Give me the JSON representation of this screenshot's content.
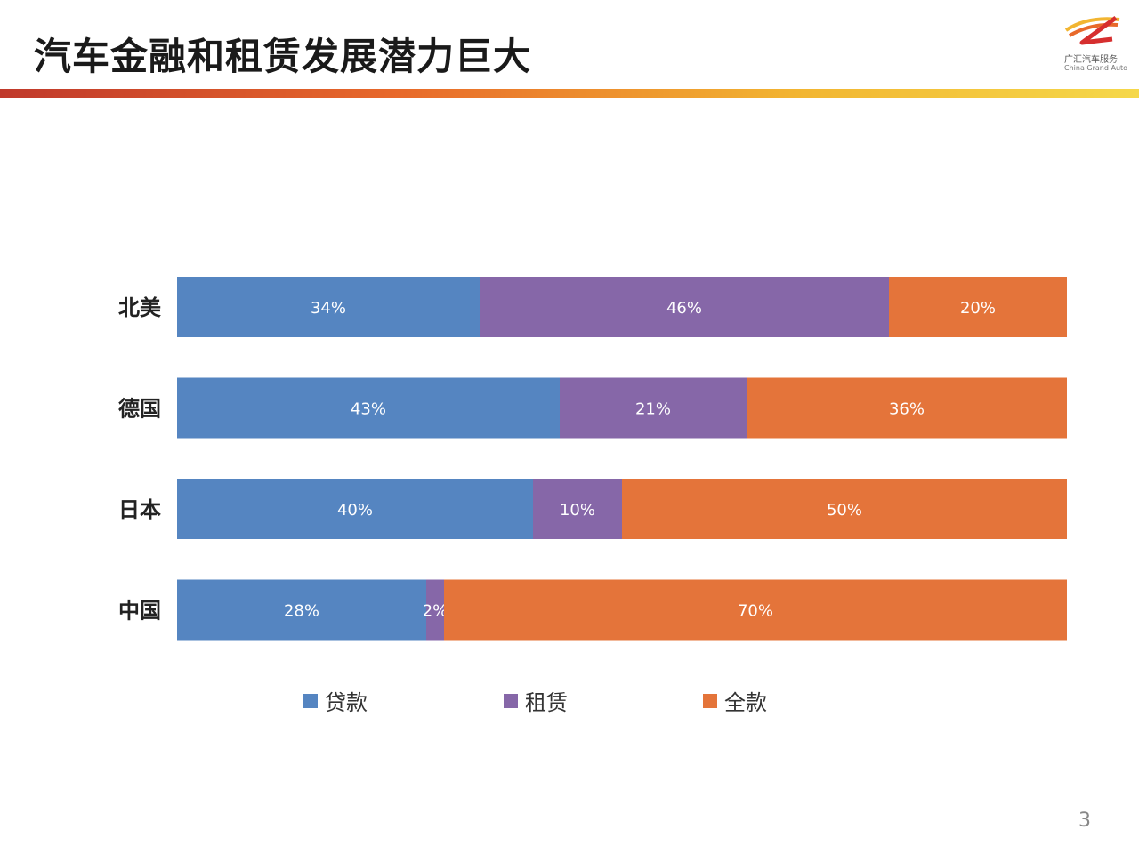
{
  "header": {
    "title": "汽车金融和租赁发展潜力巨大",
    "logo_cn": "广汇汽车服务",
    "logo_en": "China Grand Auto"
  },
  "colors": {
    "loan": "#5585c1",
    "lease": "#8667a8",
    "cash": "#e4743a"
  },
  "chart_data": {
    "type": "bar",
    "orientation": "horizontal",
    "stacked": true,
    "categories": [
      "北美",
      "德国",
      "日本",
      "中国"
    ],
    "series": [
      {
        "name": "贷款",
        "values": [
          34,
          43,
          40,
          28
        ]
      },
      {
        "name": "租赁",
        "values": [
          46,
          21,
          10,
          2
        ]
      },
      {
        "name": "全款",
        "values": [
          20,
          36,
          50,
          70
        ]
      }
    ],
    "value_suffix": "%",
    "xlim": [
      0,
      100
    ],
    "grid": false,
    "legend_position": "bottom"
  },
  "footer": {
    "page_number": "3"
  }
}
